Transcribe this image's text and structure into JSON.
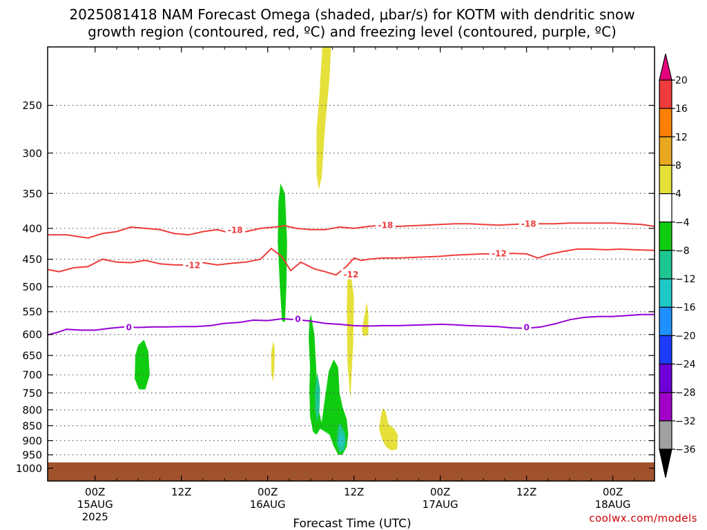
{
  "title_line1": "2025081418 NAM Forecast Omega (shaded, μbar/s) for KOTM with dendritic snow",
  "title_line2": "growth region (contoured, red, ºC) and freezing level (contoured, purple, ºC)",
  "credit": "coolwx.com/models",
  "chart_data": {
    "type": "time-height cross section",
    "title": "2025081418 NAM Forecast Omega (shaded, μbar/s) for KOTM with dendritic snow growth region (contoured, red, ºC) and freezing level (contoured, purple, ºC)",
    "xlabel": "Forecast Time (UTC)",
    "ylabel": "",
    "x_range_hours": [
      -6.6,
      77.8
    ],
    "x_ticks": [
      {
        "hour": 0,
        "label": "00Z",
        "sub1": "15AUG",
        "sub2": "2025"
      },
      {
        "hour": 12,
        "label": "12Z",
        "sub1": "",
        "sub2": ""
      },
      {
        "hour": 24,
        "label": "00Z",
        "sub1": "16AUG",
        "sub2": ""
      },
      {
        "hour": 36,
        "label": "12Z",
        "sub1": "",
        "sub2": ""
      },
      {
        "hour": 48,
        "label": "00Z",
        "sub1": "17AUG",
        "sub2": ""
      },
      {
        "hour": 60,
        "label": "12Z",
        "sub1": "",
        "sub2": ""
      },
      {
        "hour": 72,
        "label": "00Z",
        "sub1": "18AUG",
        "sub2": ""
      }
    ],
    "y_scale": "log pressure (inverted)",
    "y_range_hpa": [
      200,
      1050
    ],
    "y_ticks": [
      250,
      300,
      350,
      400,
      450,
      500,
      550,
      600,
      650,
      700,
      750,
      800,
      850,
      900,
      950,
      1000
    ],
    "grid": "dotted horizontal at each y tick",
    "ground_surface_hpa": 978,
    "ground_color": "#a0522d",
    "contours": [
      {
        "variable": "temperature",
        "level": -18,
        "color": "#ee3b3b",
        "labels": [
          {
            "hour": 19.5,
            "p": 402
          },
          {
            "hour": 40.4,
            "p": 395
          },
          {
            "hour": 60.3,
            "p": 393
          }
        ],
        "points": [
          [
            -6.6,
            410
          ],
          [
            -4,
            410
          ],
          [
            -1,
            415
          ],
          [
            1,
            408
          ],
          [
            3,
            405
          ],
          [
            5,
            398
          ],
          [
            7,
            400
          ],
          [
            9,
            402
          ],
          [
            11,
            408
          ],
          [
            13,
            410
          ],
          [
            15,
            405
          ],
          [
            17,
            402
          ],
          [
            19,
            408
          ],
          [
            21,
            405
          ],
          [
            23,
            400
          ],
          [
            25,
            398
          ],
          [
            26.4,
            396
          ],
          [
            28,
            400
          ],
          [
            30,
            402
          ],
          [
            32,
            402
          ],
          [
            34,
            398
          ],
          [
            36,
            400
          ],
          [
            38,
            397
          ],
          [
            40,
            395
          ],
          [
            42,
            397
          ],
          [
            44,
            396
          ],
          [
            46,
            395
          ],
          [
            48,
            394
          ],
          [
            50,
            393
          ],
          [
            52,
            393
          ],
          [
            54,
            394
          ],
          [
            56,
            395
          ],
          [
            58,
            394
          ],
          [
            60,
            393
          ],
          [
            62,
            393
          ],
          [
            64,
            393
          ],
          [
            66,
            392
          ],
          [
            68,
            392
          ],
          [
            70,
            392
          ],
          [
            72,
            392
          ],
          [
            74,
            393
          ],
          [
            76,
            394
          ],
          [
            77.8,
            397
          ]
        ]
      },
      {
        "variable": "temperature",
        "level": -12,
        "color": "#ee3b3b",
        "labels": [
          {
            "hour": 13.6,
            "p": 460
          },
          {
            "hour": 35.6,
            "p": 477
          },
          {
            "hour": 56.2,
            "p": 440
          }
        ],
        "points": [
          [
            -6.6,
            468
          ],
          [
            -5,
            472
          ],
          [
            -3,
            465
          ],
          [
            -1,
            463
          ],
          [
            1,
            450
          ],
          [
            3,
            455
          ],
          [
            5,
            456
          ],
          [
            7,
            452
          ],
          [
            9,
            458
          ],
          [
            11,
            460
          ],
          [
            13,
            460
          ],
          [
            15,
            456
          ],
          [
            17,
            460
          ],
          [
            19,
            457
          ],
          [
            21,
            455
          ],
          [
            23,
            450
          ],
          [
            24.5,
            432
          ],
          [
            26,
            446
          ],
          [
            27.2,
            470
          ],
          [
            28.6,
            455
          ],
          [
            30.5,
            467
          ],
          [
            32,
            472
          ],
          [
            33.5,
            478
          ],
          [
            35,
            462
          ],
          [
            36,
            448
          ],
          [
            37,
            452
          ],
          [
            38,
            450
          ],
          [
            40,
            448
          ],
          [
            42,
            448
          ],
          [
            44,
            447
          ],
          [
            46,
            446
          ],
          [
            48,
            445
          ],
          [
            50,
            443
          ],
          [
            52,
            442
          ],
          [
            54,
            441
          ],
          [
            56,
            441
          ],
          [
            58,
            440
          ],
          [
            60,
            441
          ],
          [
            61.6,
            448
          ],
          [
            63,
            442
          ],
          [
            65,
            437
          ],
          [
            67,
            433
          ],
          [
            69,
            433
          ],
          [
            71,
            434
          ],
          [
            73,
            433
          ],
          [
            75,
            434
          ],
          [
            77.8,
            435
          ]
        ]
      },
      {
        "variable": "temperature",
        "level": 0,
        "color": "#9400d3",
        "labels": [
          {
            "hour": 4.7,
            "p": 583
          },
          {
            "hour": 28.2,
            "p": 565
          },
          {
            "hour": 60.0,
            "p": 583
          }
        ],
        "points": [
          [
            -6.6,
            601
          ],
          [
            -5,
            594
          ],
          [
            -4,
            588
          ],
          [
            -2,
            590
          ],
          [
            0,
            590
          ],
          [
            2,
            586
          ],
          [
            4,
            583
          ],
          [
            6,
            584
          ],
          [
            8,
            583
          ],
          [
            10,
            583
          ],
          [
            12,
            582
          ],
          [
            14,
            582
          ],
          [
            16,
            580
          ],
          [
            18,
            575
          ],
          [
            20,
            573
          ],
          [
            22,
            568
          ],
          [
            24,
            569
          ],
          [
            26,
            565
          ],
          [
            28,
            567
          ],
          [
            30,
            570
          ],
          [
            32,
            575
          ],
          [
            34,
            577
          ],
          [
            36,
            580
          ],
          [
            38,
            581
          ],
          [
            40,
            580
          ],
          [
            42,
            580
          ],
          [
            44,
            579
          ],
          [
            46,
            578
          ],
          [
            48,
            577
          ],
          [
            50,
            578
          ],
          [
            52,
            580
          ],
          [
            54,
            581
          ],
          [
            56,
            582
          ],
          [
            58,
            585
          ],
          [
            60,
            586
          ],
          [
            62,
            583
          ],
          [
            64,
            576
          ],
          [
            66,
            567
          ],
          [
            68,
            562
          ],
          [
            70,
            560
          ],
          [
            72,
            560
          ],
          [
            74,
            558
          ],
          [
            76,
            556
          ],
          [
            77.8,
            556
          ]
        ]
      }
    ],
    "shaded_regions": [
      {
        "omega_range": "4 to 8",
        "color": "#e5e03a",
        "polygon": [
          [
            31.6,
            200
          ],
          [
            32.8,
            200
          ],
          [
            32.6,
            225
          ],
          [
            32.0,
            270
          ],
          [
            31.5,
            330
          ],
          [
            31.1,
            345
          ],
          [
            30.8,
            325
          ],
          [
            30.8,
            275
          ],
          [
            31.2,
            240
          ]
        ]
      },
      {
        "omega_range": "-8 to -4",
        "color": "#10cc10",
        "polygon": [
          [
            25.8,
            337
          ],
          [
            26.4,
            350
          ],
          [
            26.7,
            420
          ],
          [
            26.6,
            500
          ],
          [
            26.4,
            572
          ],
          [
            26.0,
            570
          ],
          [
            25.7,
            500
          ],
          [
            25.4,
            420
          ],
          [
            25.5,
            360
          ]
        ]
      },
      {
        "omega_range": "4 to 8",
        "color": "#e5e03a",
        "polygon": [
          [
            24.8,
            615
          ],
          [
            25.0,
            640
          ],
          [
            24.9,
            690
          ],
          [
            24.7,
            720
          ],
          [
            24.5,
            690
          ],
          [
            24.5,
            640
          ]
        ]
      },
      {
        "omega_range": "4 to 8",
        "color": "#e5e03a",
        "polygon": [
          [
            35.5,
            470
          ],
          [
            36.0,
            520
          ],
          [
            35.9,
            620
          ],
          [
            35.5,
            770
          ],
          [
            35.1,
            670
          ],
          [
            35.0,
            540
          ],
          [
            35.1,
            480
          ]
        ]
      },
      {
        "omega_range": "4 to 8",
        "color": "#e5e03a",
        "polygon": [
          [
            37.8,
            530
          ],
          [
            38.0,
            555
          ],
          [
            38.0,
            600
          ],
          [
            37.4,
            605
          ],
          [
            37.1,
            590
          ],
          [
            37.5,
            555
          ]
        ]
      },
      {
        "omega_range": "-8 to -4",
        "color": "#10cc10",
        "polygon": [
          [
            6.8,
            612
          ],
          [
            7.4,
            640
          ],
          [
            7.6,
            700
          ],
          [
            7.0,
            740
          ],
          [
            6.1,
            740
          ],
          [
            5.5,
            710
          ],
          [
            5.6,
            650
          ],
          [
            6.0,
            625
          ]
        ]
      },
      {
        "omega_range": "-8 to -4",
        "color": "#10cc10",
        "polygon": [
          [
            30.0,
            555
          ],
          [
            30.5,
            600
          ],
          [
            30.8,
            700
          ],
          [
            31.0,
            780
          ],
          [
            31.2,
            810
          ],
          [
            31.5,
            840
          ],
          [
            32.0,
            760
          ],
          [
            32.5,
            690
          ],
          [
            33.2,
            660
          ],
          [
            33.8,
            680
          ],
          [
            34.0,
            750
          ],
          [
            34.4,
            790
          ],
          [
            35.0,
            830
          ],
          [
            35.2,
            880
          ],
          [
            35.0,
            920
          ],
          [
            34.4,
            950
          ],
          [
            33.8,
            950
          ],
          [
            33.2,
            920
          ],
          [
            32.6,
            880
          ],
          [
            32.0,
            870
          ],
          [
            31.3,
            860
          ],
          [
            30.8,
            880
          ],
          [
            30.3,
            870
          ],
          [
            29.9,
            820
          ],
          [
            29.8,
            740
          ],
          [
            29.9,
            680
          ],
          [
            29.7,
            610
          ],
          [
            29.8,
            570
          ]
        ]
      },
      {
        "omega_range": "-12 to -8",
        "color": "#1ec691",
        "polygon": [
          [
            30.9,
            695
          ],
          [
            31.3,
            740
          ],
          [
            31.2,
            800
          ],
          [
            30.9,
            840
          ],
          [
            30.6,
            800
          ],
          [
            30.6,
            740
          ]
        ]
      },
      {
        "omega_range": "-12 to -8",
        "color": "#1ec691",
        "polygon": [
          [
            34.0,
            840
          ],
          [
            34.7,
            870
          ],
          [
            34.9,
            900
          ],
          [
            34.6,
            935
          ],
          [
            34.0,
            940
          ],
          [
            33.6,
            910
          ],
          [
            33.7,
            870
          ]
        ]
      },
      {
        "omega_range": "-16 to -12",
        "color": "#20c8c8",
        "polygon": [
          [
            34.2,
            870
          ],
          [
            34.6,
            890
          ],
          [
            34.5,
            915
          ],
          [
            34.2,
            925
          ],
          [
            33.9,
            905
          ],
          [
            34.0,
            885
          ]
        ]
      },
      {
        "omega_range": "4 to 8",
        "color": "#e5e03a",
        "polygon": [
          [
            40.0,
            795
          ],
          [
            40.4,
            805
          ],
          [
            40.8,
            845
          ],
          [
            41.6,
            860
          ],
          [
            42.1,
            880
          ],
          [
            42.0,
            930
          ],
          [
            41.2,
            935
          ],
          [
            40.4,
            920
          ],
          [
            39.9,
            895
          ],
          [
            39.5,
            860
          ],
          [
            39.7,
            825
          ]
        ]
      }
    ],
    "colorbar": {
      "orientation": "vertical",
      "levels": [
        20,
        16,
        12,
        8,
        4,
        -4,
        -8,
        -12,
        -16,
        -20,
        -24,
        -28,
        -32,
        -36
      ],
      "colors": [
        "#e6007e",
        "#ee3b3b",
        "#ff8000",
        "#e8a820",
        "#e5e03a",
        "#ffffff",
        "#10cc10",
        "#1ec691",
        "#20c8c8",
        "#1e90ff",
        "#1e3cff",
        "#7000d8",
        "#a000c8",
        "#a0a0a0",
        "#000000"
      ]
    }
  }
}
